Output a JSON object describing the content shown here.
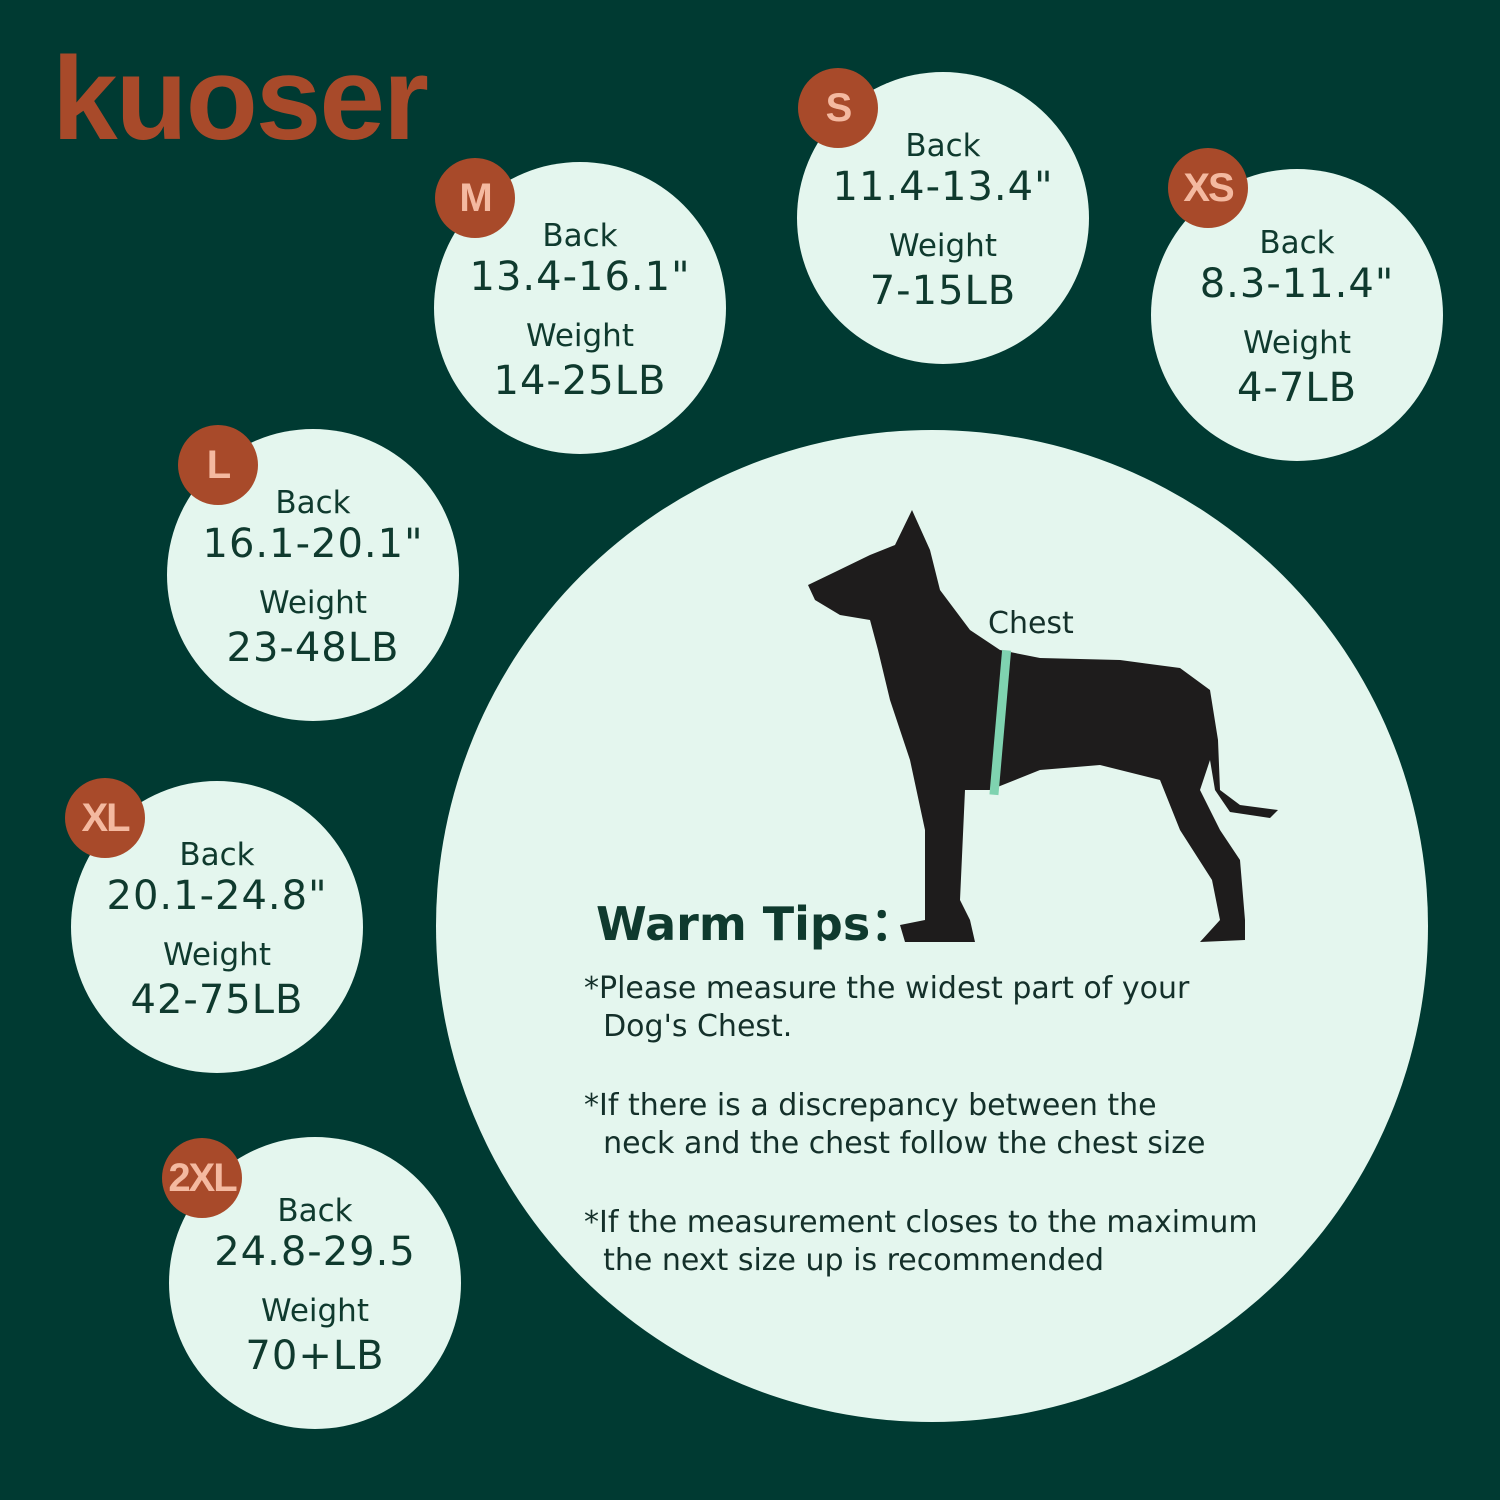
{
  "brand": {
    "logo": "kuoser"
  },
  "colors": {
    "background": "#003a32",
    "circle": "#e4f6ee",
    "badge": "#a84a2a",
    "badge_text": "#f4b9a0",
    "tape": "#7fd3b0"
  },
  "sizes": [
    {
      "size": "S",
      "back_label": "Back",
      "back": "11.4-13.4\"",
      "weight_label": "Weight",
      "weight": "7-15LB"
    },
    {
      "size": "M",
      "back_label": "Back",
      "back": "13.4-16.1\"",
      "weight_label": "Weight",
      "weight": "14-25LB"
    },
    {
      "size": "XS",
      "back_label": "Back",
      "back": "8.3-11.4\"",
      "weight_label": "Weight",
      "weight": "4-7LB"
    },
    {
      "size": "L",
      "back_label": "Back",
      "back": "16.1-20.1\"",
      "weight_label": "Weight",
      "weight": "23-48LB"
    },
    {
      "size": "XL",
      "back_label": "Back",
      "back": "20.1-24.8\"",
      "weight_label": "Weight",
      "weight": "42-75LB"
    },
    {
      "size": "2XL",
      "back_label": "Back",
      "back": "24.8-29.5",
      "weight_label": "Weight",
      "weight": "70+LB"
    }
  ],
  "illustration": {
    "chest_label": "Chest",
    "icon": "dog-silhouette-icon"
  },
  "tips": {
    "title": "Warm Tips：",
    "items": [
      "*Please measure the widest part of your\n  Dog's Chest.",
      "*If there is a discrepancy between the\n  neck and the chest follow the chest size",
      "*If the measurement closes to the maximum\n  the next size up is recommended"
    ]
  }
}
